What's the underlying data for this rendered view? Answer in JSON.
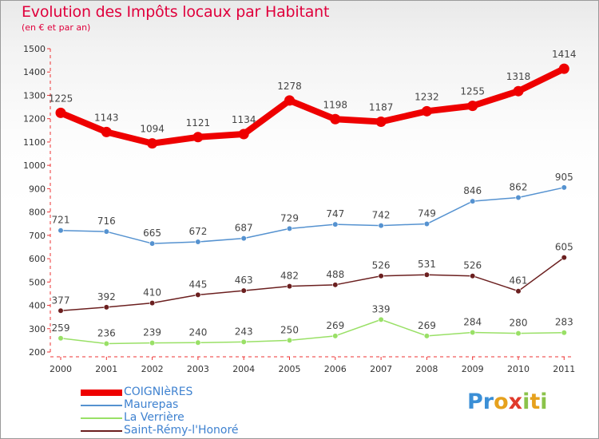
{
  "title": "Evolution des Impôts locaux par Habitant",
  "subtitle": "(en € et par an)",
  "logo": {
    "text": "Proxiti"
  },
  "colors": {
    "COIGNIèRES": "#ee0000",
    "Maurepas": "#5592d0",
    "La Verrière": "#99e066",
    "Saint-Rémy-l'Honoré": "#6b1f1f"
  },
  "chart_data": {
    "type": "line",
    "title": "Evolution des Impôts locaux par Habitant",
    "subtitle": "(en € et par an)",
    "categories": [
      "2000",
      "2001",
      "2002",
      "2003",
      "2004",
      "2005",
      "2006",
      "2007",
      "2008",
      "2009",
      "2010",
      "2011"
    ],
    "ylim": [
      200,
      1500
    ],
    "yticks": [
      200,
      300,
      400,
      500,
      600,
      700,
      800,
      900,
      1000,
      1100,
      1200,
      1300,
      1400,
      1500
    ],
    "grid": false,
    "legend": "bottom-left",
    "series": [
      {
        "name": "COIGNIèRES",
        "color": "#ee0000",
        "values": [
          1225,
          1143,
          1094,
          1121,
          1134,
          1278,
          1198,
          1187,
          1232,
          1255,
          1318,
          1414
        ]
      },
      {
        "name": "Maurepas",
        "color": "#5592d0",
        "values": [
          721,
          716,
          665,
          672,
          687,
          729,
          747,
          742,
          749,
          846,
          862,
          905
        ]
      },
      {
        "name": "La Verrière",
        "color": "#99e066",
        "values": [
          259,
          236,
          239,
          240,
          243,
          250,
          269,
          339,
          269,
          284,
          280,
          283
        ]
      },
      {
        "name": "Saint-Rémy-l'Honoré",
        "color": "#6b1f1f",
        "values": [
          377,
          392,
          410,
          445,
          463,
          482,
          488,
          526,
          531,
          526,
          461,
          605
        ]
      }
    ]
  }
}
